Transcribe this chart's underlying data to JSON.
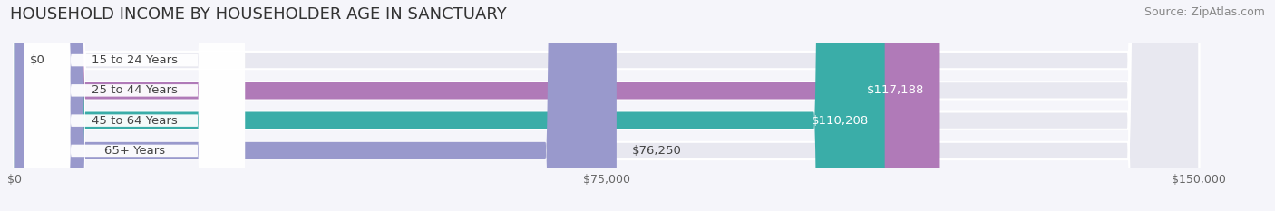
{
  "title": "HOUSEHOLD INCOME BY HOUSEHOLDER AGE IN SANCTUARY",
  "source": "Source: ZipAtlas.com",
  "categories": [
    "15 to 24 Years",
    "25 to 44 Years",
    "45 to 64 Years",
    "65+ Years"
  ],
  "values": [
    0,
    117188,
    110208,
    76250
  ],
  "labels": [
    "$0",
    "$117,188",
    "$110,208",
    "$76,250"
  ],
  "bar_colors": [
    "#a8c4e0",
    "#b07ab8",
    "#3aada8",
    "#9999cc"
  ],
  "bar_bg_color": "#e8e8f0",
  "xlim": [
    0,
    150000
  ],
  "xticks": [
    0,
    75000,
    150000
  ],
  "xticklabels": [
    "$0",
    "$75,000",
    "$150,000"
  ],
  "title_fontsize": 13,
  "source_fontsize": 9,
  "label_fontsize": 9.5,
  "tick_fontsize": 9,
  "background_color": "#f5f5fa",
  "pill_text_color": "#444444",
  "bar_gap": 1.5
}
